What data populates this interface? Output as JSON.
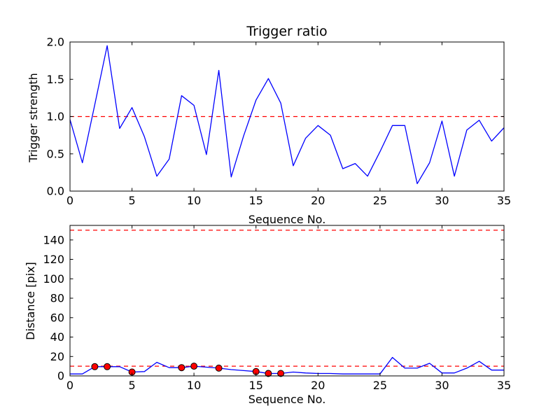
{
  "figure": {
    "background_color": "#ffffff",
    "line_color": "#0000ff",
    "threshold_color": "#ff0000",
    "marker_face_color": "#ff0000",
    "marker_edge_color": "#000000",
    "axis_color": "#000000"
  },
  "chart_data": [
    {
      "type": "line",
      "title": "Trigger ratio",
      "xlabel": "Sequence No.",
      "ylabel": "Trigger strength",
      "xlim": [
        0,
        35
      ],
      "ylim": [
        0,
        2.0
      ],
      "grid": false,
      "legend": "none",
      "xticks": {
        "values": [
          0,
          5,
          10,
          15,
          20,
          25,
          30,
          35
        ],
        "labels": [
          "0",
          "5",
          "10",
          "15",
          "20",
          "25",
          "30",
          "35"
        ]
      },
      "yticks": {
        "values": [
          0,
          0.5,
          1.0,
          1.5,
          2.0
        ],
        "labels": [
          "0.0",
          "0.5",
          "1.0",
          "1.5",
          "2.0"
        ]
      },
      "thresholds": [
        1.0
      ],
      "series": [
        {
          "name": "trigger-strength",
          "x": [
            0,
            1,
            2,
            3,
            4,
            5,
            6,
            7,
            8,
            9,
            10,
            11,
            12,
            13,
            14,
            15,
            16,
            17,
            18,
            19,
            20,
            21,
            22,
            23,
            24,
            25,
            26,
            27,
            28,
            29,
            30,
            31,
            32,
            33,
            34,
            35
          ],
          "y": [
            0.96,
            0.38,
            1.16,
            1.95,
            0.84,
            1.12,
            0.73,
            0.2,
            0.43,
            1.28,
            1.15,
            0.49,
            1.62,
            0.19,
            0.74,
            1.22,
            1.51,
            1.18,
            0.34,
            0.71,
            0.88,
            0.75,
            0.3,
            0.37,
            0.2,
            0.53,
            0.88,
            0.88,
            0.1,
            0.38,
            0.94,
            0.2,
            0.82,
            0.95,
            0.67,
            0.85
          ]
        }
      ]
    },
    {
      "type": "line",
      "title": "",
      "xlabel": "Sequence No.",
      "ylabel": "Distance [pix]",
      "xlim": [
        0,
        35
      ],
      "ylim": [
        0,
        155
      ],
      "grid": false,
      "legend": "none",
      "xticks": {
        "values": [
          0,
          5,
          10,
          15,
          20,
          25,
          30,
          35
        ],
        "labels": [
          "0",
          "5",
          "10",
          "15",
          "20",
          "25",
          "30",
          "35"
        ]
      },
      "yticks": {
        "values": [
          0,
          20,
          40,
          60,
          80,
          100,
          120,
          140
        ],
        "labels": [
          "0",
          "20",
          "40",
          "60",
          "80",
          "100",
          "120",
          "140"
        ]
      },
      "thresholds": [
        150,
        10
      ],
      "series": [
        {
          "name": "distance",
          "x": [
            0,
            1,
            2,
            3,
            4,
            5,
            6,
            7,
            8,
            9,
            10,
            11,
            12,
            13,
            14,
            15,
            16,
            17,
            18,
            19,
            20,
            21,
            22,
            23,
            24,
            25,
            26,
            27,
            28,
            29,
            30,
            31,
            32,
            33,
            34,
            35
          ],
          "y": [
            2,
            2,
            9.5,
            9.5,
            9.5,
            4,
            4.5,
            14,
            8.5,
            8.5,
            10,
            9,
            8,
            6.5,
            5.5,
            4.5,
            2.5,
            2.5,
            4,
            3,
            2.5,
            2.5,
            2,
            2,
            2,
            2,
            19,
            8,
            8,
            13,
            3,
            3,
            8,
            15,
            6,
            6
          ]
        }
      ],
      "markers": {
        "x": [
          2,
          3,
          5,
          9,
          10,
          12,
          15,
          16,
          17
        ],
        "y": [
          9.5,
          9.5,
          4,
          8.5,
          10,
          8,
          4.5,
          2.5,
          2.5
        ]
      }
    }
  ]
}
